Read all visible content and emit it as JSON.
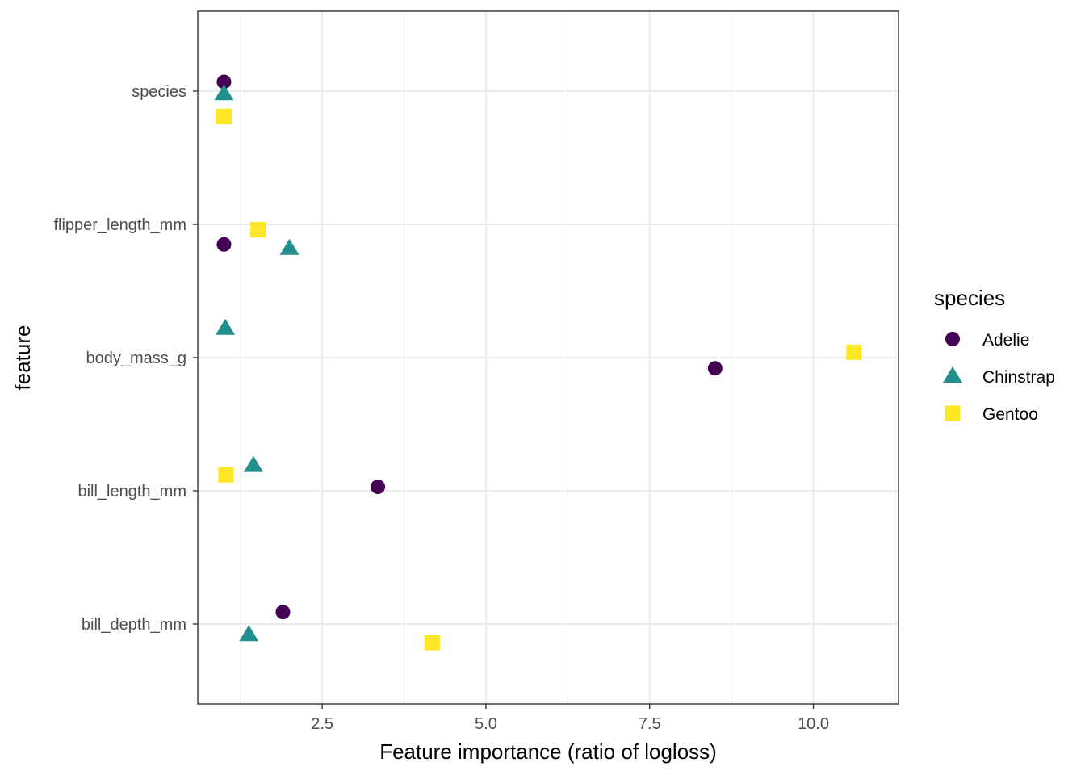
{
  "chart_data": {
    "type": "scatter",
    "title": "",
    "xlabel": "Feature importance (ratio of logloss)",
    "ylabel": "feature",
    "xlim": [
      0.6,
      11.3
    ],
    "x_ticks": [
      2.5,
      5.0,
      7.5,
      10.0
    ],
    "x_tick_labels": [
      "2.5",
      "5.0",
      "7.5",
      "10.0"
    ],
    "categories": [
      "species",
      "flipper_length_mm",
      "body_mass_g",
      "bill_length_mm",
      "bill_depth_mm"
    ],
    "grid": true,
    "legend": {
      "title": "species",
      "position": "right"
    },
    "series": [
      {
        "name": "Adelie",
        "shape": "circle",
        "color": "#440154",
        "points": [
          {
            "category": "species",
            "x": 1.0,
            "jitter": 0.07
          },
          {
            "category": "flipper_length_mm",
            "x": 1.0,
            "jitter": -0.15
          },
          {
            "category": "body_mass_g",
            "x": 8.5,
            "jitter": -0.08
          },
          {
            "category": "bill_length_mm",
            "x": 3.35,
            "jitter": 0.03
          },
          {
            "category": "bill_depth_mm",
            "x": 1.9,
            "jitter": 0.09
          }
        ]
      },
      {
        "name": "Chinstrap",
        "shape": "triangle",
        "color": "#21908C",
        "points": [
          {
            "category": "species",
            "x": 1.0,
            "jitter": -0.02
          },
          {
            "category": "flipper_length_mm",
            "x": 2.0,
            "jitter": -0.18
          },
          {
            "category": "body_mass_g",
            "x": 1.02,
            "jitter": 0.22
          },
          {
            "category": "bill_length_mm",
            "x": 1.45,
            "jitter": 0.19
          },
          {
            "category": "bill_depth_mm",
            "x": 1.38,
            "jitter": -0.08
          }
        ]
      },
      {
        "name": "Gentoo",
        "shape": "square",
        "color": "#FDE725",
        "points": [
          {
            "category": "species",
            "x": 1.0,
            "jitter": -0.19
          },
          {
            "category": "flipper_length_mm",
            "x": 1.52,
            "jitter": -0.04
          },
          {
            "category": "body_mass_g",
            "x": 10.62,
            "jitter": 0.04
          },
          {
            "category": "bill_length_mm",
            "x": 1.03,
            "jitter": 0.12
          },
          {
            "category": "bill_depth_mm",
            "x": 4.18,
            "jitter": -0.14
          }
        ]
      }
    ]
  }
}
